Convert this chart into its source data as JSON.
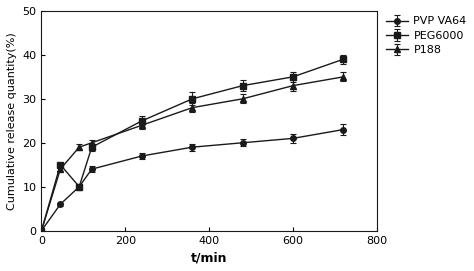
{
  "title": "",
  "xlabel": "t/min",
  "ylabel": "Cumulative release quantity(%)",
  "xlim": [
    0,
    800
  ],
  "ylim": [
    0,
    50
  ],
  "xticks": [
    0,
    200,
    400,
    600,
    800
  ],
  "yticks": [
    0,
    10,
    20,
    30,
    40,
    50
  ],
  "series": [
    {
      "label": "PVP VA64",
      "marker": "o",
      "x": [
        0,
        45,
        90,
        120,
        240,
        360,
        480,
        600,
        720
      ],
      "y": [
        0,
        6,
        10,
        14,
        17,
        19,
        20,
        21,
        23
      ],
      "yerr": [
        0,
        0.4,
        0.6,
        0.6,
        0.7,
        0.8,
        0.8,
        1.0,
        1.2
      ],
      "color": "#1a1a1a"
    },
    {
      "label": "PEG6000",
      "marker": "s",
      "x": [
        0,
        45,
        90,
        120,
        240,
        360,
        480,
        600,
        720
      ],
      "y": [
        0,
        15,
        10,
        19,
        25,
        30,
        33,
        35,
        39
      ],
      "yerr": [
        0,
        0.5,
        0.7,
        0.8,
        1.0,
        1.5,
        1.2,
        1.2,
        1.0
      ],
      "color": "#1a1a1a"
    },
    {
      "label": "P188",
      "marker": "^",
      "x": [
        0,
        45,
        90,
        120,
        240,
        360,
        480,
        600,
        720
      ],
      "y": [
        0,
        14,
        19,
        20,
        24,
        28,
        30,
        33,
        35
      ],
      "yerr": [
        0,
        0.5,
        0.7,
        0.7,
        0.8,
        1.0,
        1.0,
        1.2,
        1.0
      ],
      "color": "#1a1a1a"
    }
  ],
  "background_color": "#ffffff",
  "line_color": "#1a1a1a",
  "font_size": 8,
  "label_fontsize": 9,
  "legend_fontsize": 8,
  "markersize_circle": 4,
  "markersize_square": 4,
  "markersize_triangle": 5
}
